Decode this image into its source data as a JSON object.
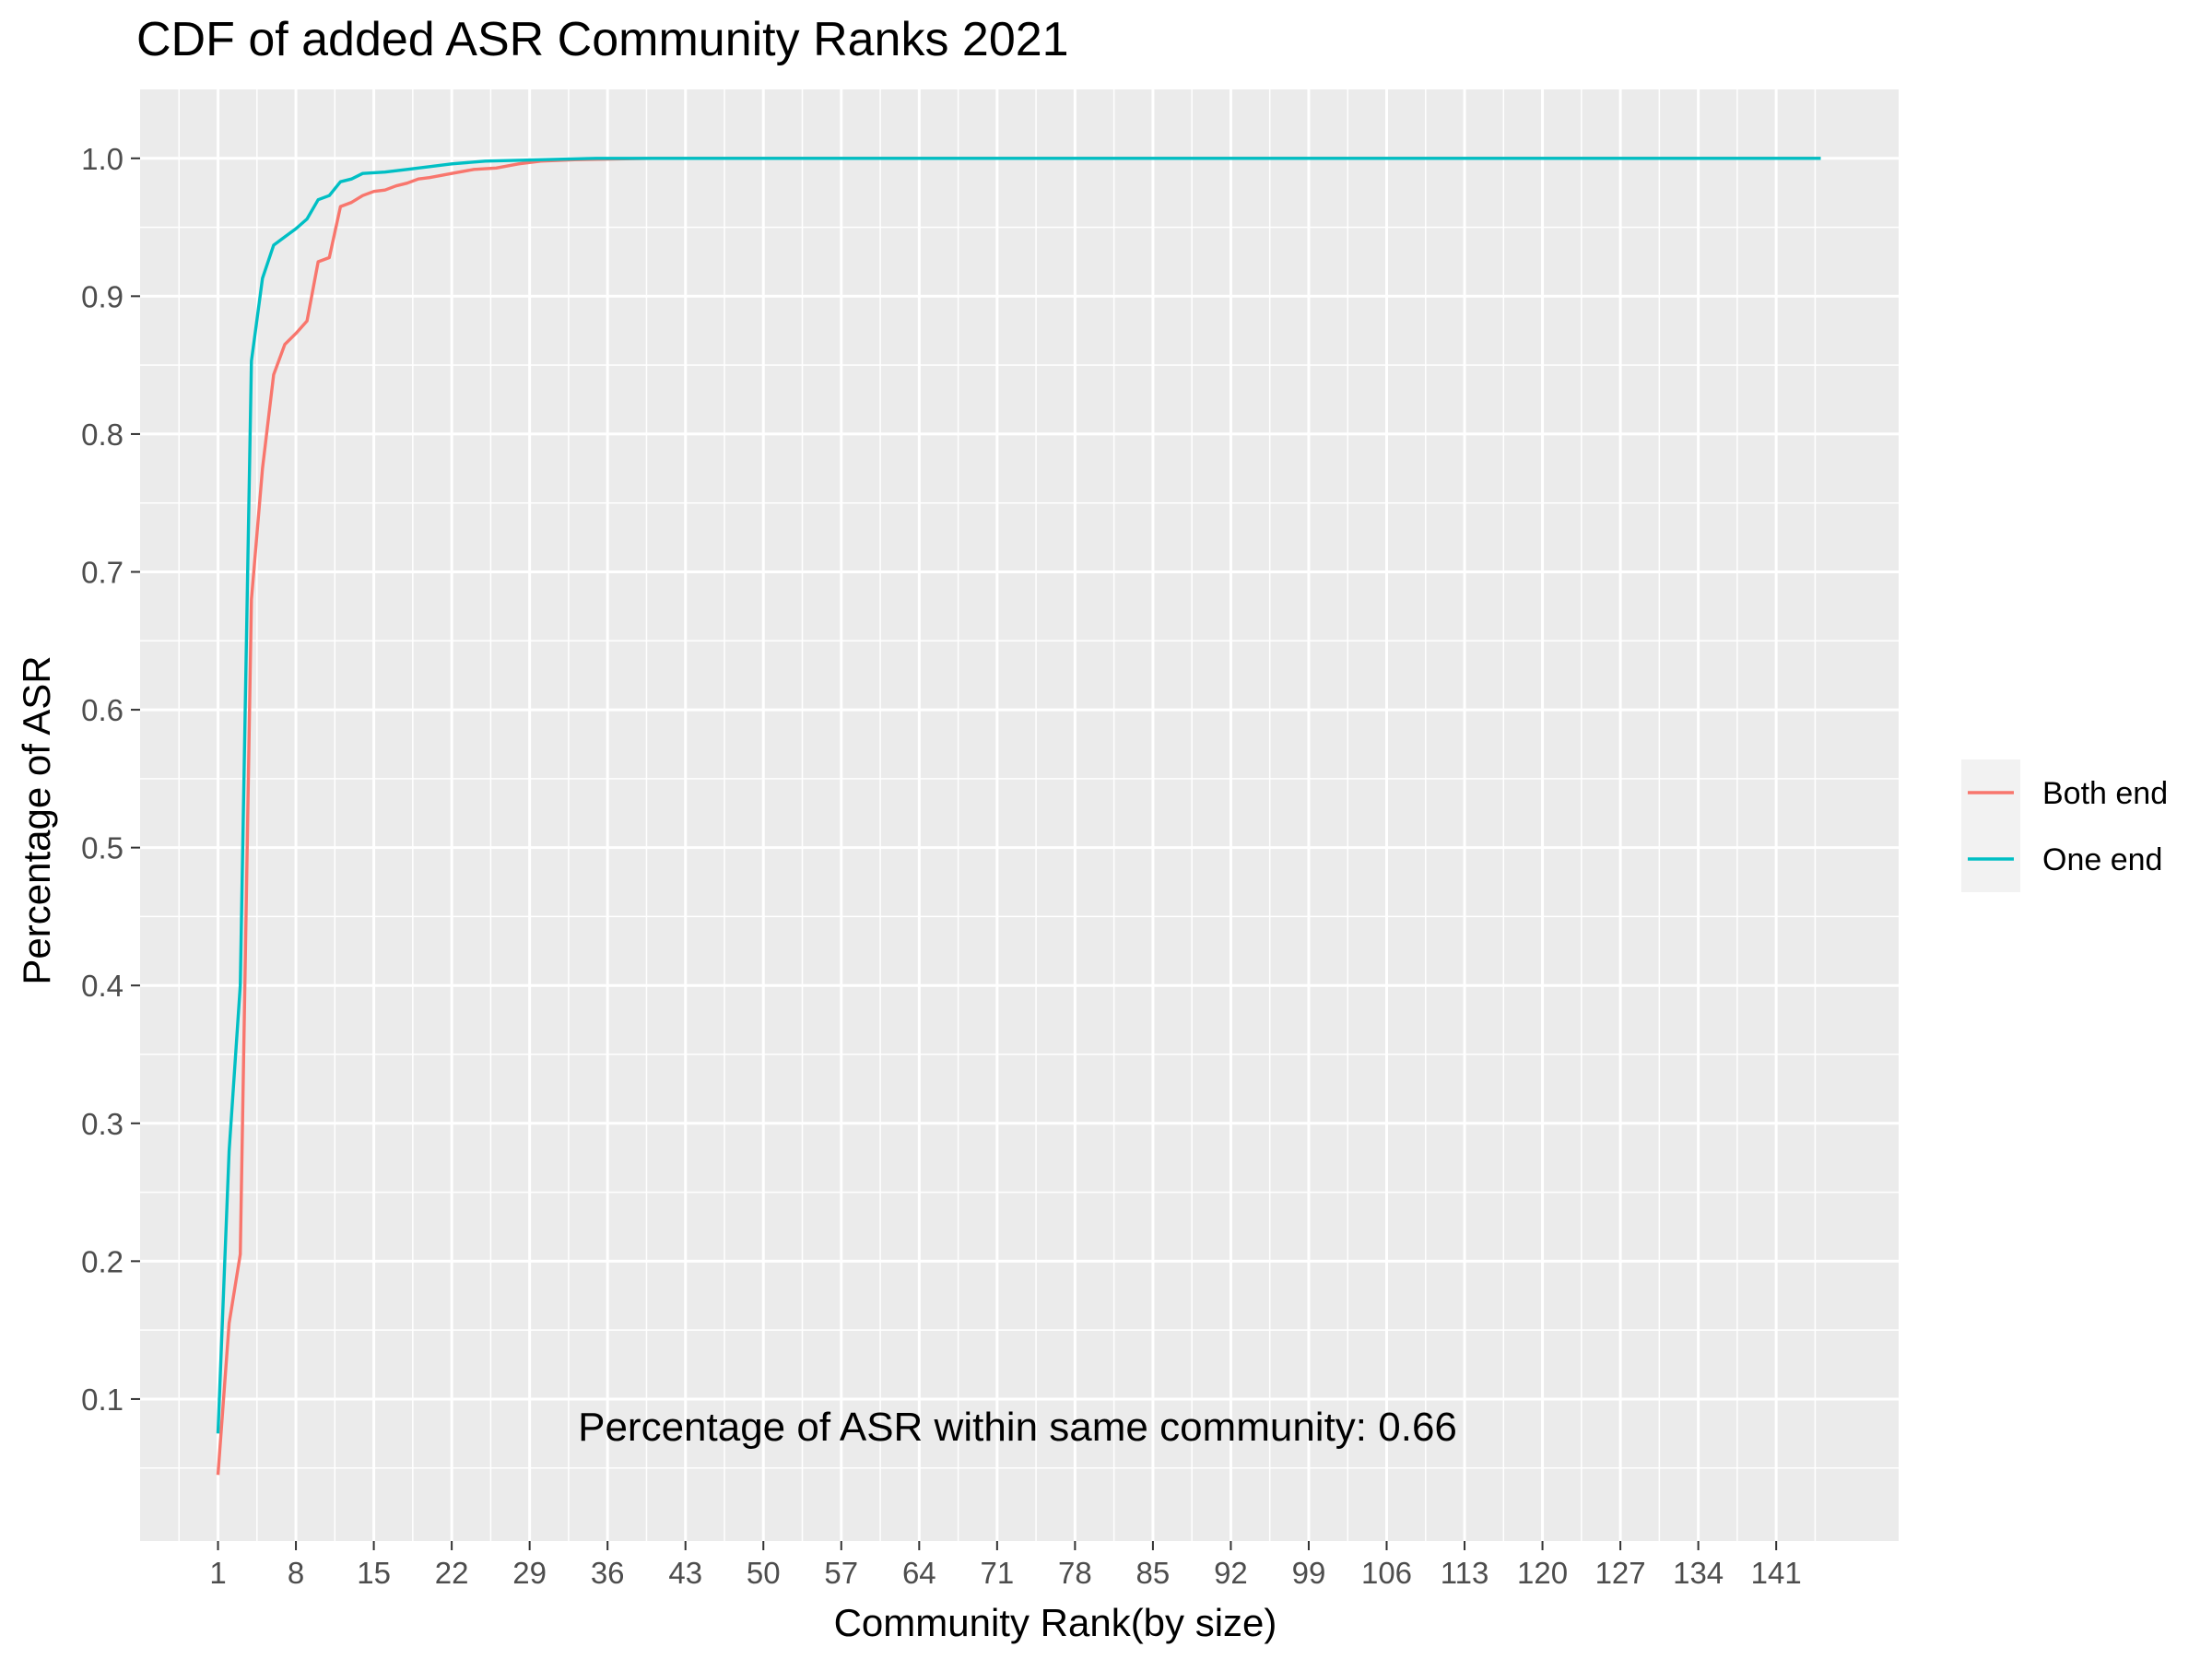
{
  "chart_data": {
    "type": "line",
    "title": "CDF of added ASR Community Ranks 2021",
    "xlabel": "Community Rank(by size)",
    "ylabel": "Percentage of ASR",
    "xlim": [
      -6,
      152
    ],
    "ylim": [
      -0.003,
      1.05
    ],
    "x_ticks": [
      1,
      8,
      15,
      22,
      29,
      36,
      43,
      50,
      57,
      64,
      71,
      78,
      85,
      92,
      99,
      106,
      113,
      120,
      127,
      134,
      141
    ],
    "y_ticks": [
      0.1,
      0.2,
      0.3,
      0.4,
      0.5,
      0.6,
      0.7,
      0.8,
      0.9,
      1.0
    ],
    "y_tick_labels": [
      "0.1",
      "0.2",
      "0.3",
      "0.4",
      "0.5",
      "0.6",
      "0.7",
      "0.8",
      "0.9",
      "1.0"
    ],
    "grid": true,
    "legend_position": "right",
    "annotation": "Percentage of ASR within same community: 0.66",
    "colors": {
      "panel": "#ebebeb",
      "grid": "#ffffff",
      "both_end": "#f8766d",
      "one_end": "#00bfc4"
    },
    "series": [
      {
        "name": "Both end",
        "color": "#f8766d",
        "points": [
          [
            1,
            0.045
          ],
          [
            2,
            0.155
          ],
          [
            3,
            0.205
          ],
          [
            4,
            0.68
          ],
          [
            5,
            0.775
          ],
          [
            6,
            0.843
          ],
          [
            7,
            0.865
          ],
          [
            8,
            0.873
          ],
          [
            9,
            0.882
          ],
          [
            10,
            0.925
          ],
          [
            11,
            0.928
          ],
          [
            12,
            0.965
          ],
          [
            13,
            0.968
          ],
          [
            14,
            0.973
          ],
          [
            15,
            0.976
          ],
          [
            16,
            0.977
          ],
          [
            17,
            0.98
          ],
          [
            18,
            0.982
          ],
          [
            19,
            0.985
          ],
          [
            20,
            0.986
          ],
          [
            22,
            0.989
          ],
          [
            24,
            0.992
          ],
          [
            26,
            0.993
          ],
          [
            28,
            0.996
          ],
          [
            30,
            0.998
          ],
          [
            33,
            0.999
          ],
          [
            40,
            1.0
          ],
          [
            145,
            1.0
          ]
        ]
      },
      {
        "name": "One end",
        "color": "#00bfc4",
        "points": [
          [
            1,
            0.075
          ],
          [
            2,
            0.28
          ],
          [
            3,
            0.4
          ],
          [
            4,
            0.853
          ],
          [
            5,
            0.913
          ],
          [
            6,
            0.937
          ],
          [
            7,
            0.943
          ],
          [
            8,
            0.949
          ],
          [
            9,
            0.956
          ],
          [
            10,
            0.97
          ],
          [
            11,
            0.973
          ],
          [
            12,
            0.983
          ],
          [
            13,
            0.985
          ],
          [
            14,
            0.989
          ],
          [
            16,
            0.99
          ],
          [
            18,
            0.992
          ],
          [
            20,
            0.994
          ],
          [
            22,
            0.996
          ],
          [
            25,
            0.998
          ],
          [
            30,
            0.999
          ],
          [
            35,
            1.0
          ],
          [
            145,
            1.0
          ]
        ]
      }
    ]
  }
}
